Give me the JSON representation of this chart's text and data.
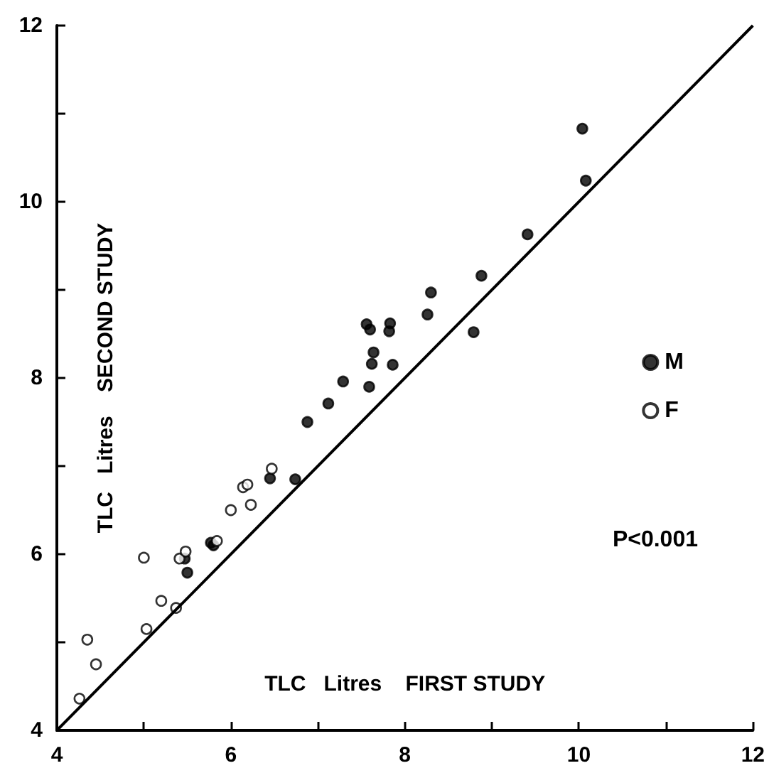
{
  "chart_data": {
    "type": "scatter",
    "xlabel": "TLC   Litres    FIRST STUDY",
    "ylabel": "TLC   Litres    SECOND STUDY",
    "annotations": [
      "P<0.001"
    ],
    "xlim": [
      4,
      12
    ],
    "ylim": [
      4,
      12
    ],
    "xticks": [
      4,
      {
        "value": 5,
        "label": null
      },
      6,
      {
        "value": 7,
        "label": null
      },
      8,
      {
        "value": 9,
        "label": null
      },
      10,
      {
        "value": 11,
        "label": null
      },
      12
    ],
    "yticks": [
      4,
      {
        "value": 5,
        "label": null
      },
      6,
      {
        "value": 7,
        "label": null
      },
      8,
      {
        "value": 9,
        "label": null
      },
      10,
      {
        "value": 11,
        "label": null
      },
      12
    ],
    "grid": false,
    "legend": "right",
    "marker": "circle",
    "series": [
      {
        "name": "M",
        "color": "#000000",
        "x": [
          5.47,
          5.5,
          5.77,
          5.8,
          6.45,
          6.74,
          6.88,
          7.12,
          7.29,
          7.59,
          7.62,
          7.64,
          7.56,
          7.6,
          7.83,
          7.82,
          7.86,
          8.26,
          8.3,
          8.79,
          8.88,
          9.41,
          10.04,
          10.08
        ],
        "values": [
          5.95,
          5.79,
          6.13,
          6.1,
          6.86,
          6.85,
          7.5,
          7.71,
          7.96,
          7.9,
          8.16,
          8.29,
          8.61,
          8.55,
          8.62,
          8.53,
          8.15,
          8.72,
          8.97,
          8.52,
          9.16,
          9.63,
          10.83,
          10.24
        ]
      },
      {
        "name": "F",
        "color": "#ffffff",
        "x": [
          4.26,
          4.35,
          4.45,
          5.03,
          5.0,
          5.2,
          5.37,
          5.41,
          5.48,
          5.84,
          6.0,
          6.14,
          6.19,
          6.23,
          6.47
        ],
        "values": [
          4.36,
          5.03,
          4.75,
          5.15,
          5.96,
          5.47,
          5.39,
          5.95,
          6.03,
          6.15,
          6.5,
          6.76,
          6.79,
          6.56,
          6.97
        ]
      },
      {
        "type": "line",
        "marker": "none",
        "color": "#000000",
        "x": [
          4,
          12
        ],
        "values": [
          4,
          12
        ]
      }
    ]
  }
}
